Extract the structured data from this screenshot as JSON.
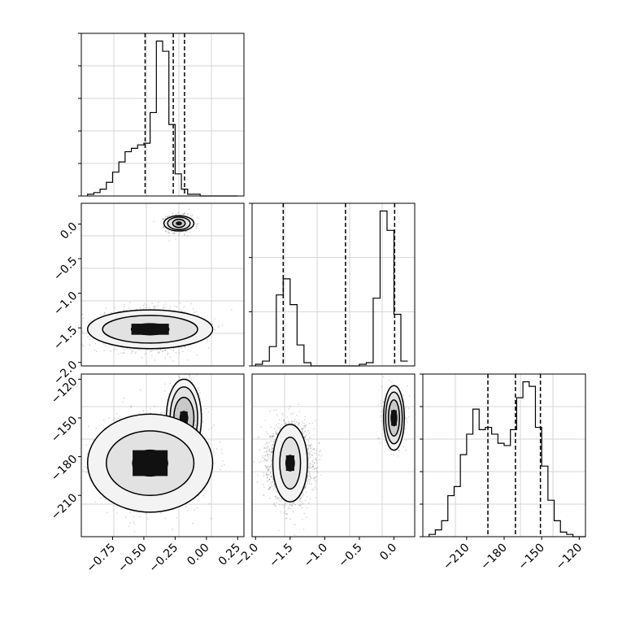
{
  "figure": {
    "type": "corner-plot"
  },
  "chart_data": [
    {
      "id": "hist-p1",
      "type": "bar",
      "panel": "histogram",
      "xlim": [
        -1.0,
        0.3
      ],
      "bin_edges": [
        -0.95,
        -0.9,
        -0.85,
        -0.8,
        -0.75,
        -0.7,
        -0.65,
        -0.6,
        -0.55,
        -0.5,
        -0.45,
        -0.4,
        -0.35,
        -0.3,
        -0.25,
        -0.2,
        -0.15,
        -0.1,
        -0.05,
        0.0,
        0.05,
        0.1,
        0.15,
        0.2,
        0.25
      ],
      "counts": [
        0.01,
        0.02,
        0.04,
        0.08,
        0.14,
        0.2,
        0.26,
        0.28,
        0.3,
        0.31,
        0.49,
        0.91,
        0.85,
        0.42,
        0.13,
        0.04,
        0.01,
        0.01,
        0,
        0,
        0,
        0,
        0,
        0
      ],
      "quantile_lines": [
        -0.49,
        -0.265,
        -0.175
      ],
      "ytick_count": 5,
      "grid": true
    },
    {
      "id": "hist-p2",
      "type": "bar",
      "panel": "histogram",
      "xlim": [
        -2.05,
        0.3
      ],
      "bin_edges": [
        -2.0,
        -1.9,
        -1.8,
        -1.7,
        -1.6,
        -1.5,
        -1.4,
        -1.3,
        -1.2,
        -1.1,
        -1.0,
        -0.9,
        -0.8,
        -0.7,
        -0.6,
        -0.5,
        -0.4,
        -0.3,
        -0.2,
        -0.1,
        0.0,
        0.1,
        0.2
      ],
      "counts": [
        0.01,
        0.03,
        0.12,
        0.44,
        0.54,
        0.38,
        0.13,
        0.02,
        0,
        0,
        0,
        0,
        0,
        0,
        0,
        0.01,
        0.02,
        0.42,
        0.96,
        0.84,
        0.32,
        0.03
      ],
      "quantile_lines": [
        -1.6,
        -0.7,
        0.01
      ],
      "ytick_count": 3,
      "grid": true
    },
    {
      "id": "hist-p3",
      "type": "bar",
      "panel": "histogram",
      "xlim": [
        -245,
        -115
      ],
      "bin_edges": [
        -240,
        -235,
        -230,
        -225,
        -220,
        -215,
        -210,
        -205,
        -200,
        -195,
        -190,
        -185,
        -180,
        -175,
        -170,
        -165,
        -160,
        -155,
        -150,
        -145,
        -140,
        -135,
        -130,
        -125,
        -120,
        -115
      ],
      "counts": [
        0.01,
        0.03,
        0.07,
        0.18,
        0.22,
        0.36,
        0.45,
        0.56,
        0.47,
        0.48,
        0.45,
        0.41,
        0.4,
        0.47,
        0.61,
        0.68,
        0.66,
        0.48,
        0.31,
        0.16,
        0.07,
        0.02,
        0.01,
        0,
        0
      ],
      "quantile_lines": [
        -193,
        -171,
        -151
      ],
      "ytick_count": 5,
      "grid": true
    },
    {
      "id": "scatter-p1-p2",
      "type": "scatter",
      "panel": "density-contour",
      "xlim": [
        -1.0,
        0.3
      ],
      "ylim": [
        -2.05,
        0.3
      ],
      "clusters": [
        {
          "center": [
            -0.22,
            0.01
          ],
          "spread": [
            0.05,
            0.06
          ],
          "points": 900,
          "contour_radii": [
            [
              0.02,
              0.02
            ],
            [
              0.05,
              0.06
            ],
            [
              0.09,
              0.09
            ],
            [
              0.12,
              0.11
            ]
          ]
        },
        {
          "center": [
            -0.45,
            -1.52
          ],
          "spread": [
            0.18,
            0.13
          ],
          "points": 2800,
          "contour_radii": [
            [
              0.15,
              0.08
            ],
            [
              0.38,
              0.2
            ],
            [
              0.5,
              0.28
            ]
          ]
        }
      ],
      "yticks": [
        0.0,
        -0.5,
        -1.0,
        -1.5,
        -2.0
      ],
      "ytick_labels": [
        "0.0",
        "−0.5",
        "−1.0",
        "−1.5",
        "−2.0"
      ],
      "ylabel": "",
      "grid": true
    },
    {
      "id": "scatter-p1-p3",
      "type": "scatter",
      "panel": "density-contour",
      "xlim": [
        -1.0,
        0.3
      ],
      "ylim": [
        -242,
        -116
      ],
      "clusters": [
        {
          "center": [
            -0.18,
            -150
          ],
          "spread": [
            0.06,
            13
          ],
          "points": 1100,
          "contour_radii": [
            [
              0.03,
              5
            ],
            [
              0.08,
              16
            ],
            [
              0.11,
              24
            ],
            [
              0.14,
              30
            ]
          ]
        },
        {
          "center": [
            -0.45,
            -185
          ],
          "spread": [
            0.18,
            15
          ],
          "points": 2600,
          "contour_radii": [
            [
              0.14,
              10
            ],
            [
              0.35,
              25
            ],
            [
              0.5,
              38
            ]
          ]
        }
      ],
      "yticks": [
        -120,
        -150,
        -180,
        -210
      ],
      "ytick_labels": [
        "−120",
        "−150",
        "−180",
        "−210"
      ],
      "xticks": [
        -0.75,
        -0.5,
        -0.25,
        0.0,
        0.25
      ],
      "xtick_labels": [
        "−0.75",
        "−0.50",
        "−0.25",
        "0.00",
        "0.25"
      ],
      "xlabel": "",
      "ylabel": "",
      "grid": true
    },
    {
      "id": "scatter-p2-p3",
      "type": "scatter",
      "panel": "density-contour",
      "xlim": [
        -2.05,
        0.3
      ],
      "ylim": [
        -242,
        -116
      ],
      "clusters": [
        {
          "center": [
            0.0,
            -150
          ],
          "spread": [
            0.07,
            10
          ],
          "points": 1100,
          "contour_radii": [
            [
              0.04,
              6
            ],
            [
              0.08,
              14
            ],
            [
              0.12,
              20
            ],
            [
              0.15,
              25
            ]
          ]
        },
        {
          "center": [
            -1.5,
            -185
          ],
          "spread": [
            0.15,
            14
          ],
          "points": 2600,
          "contour_radii": [
            [
              0.06,
              6
            ],
            [
              0.15,
              20
            ],
            [
              0.25,
              30
            ]
          ]
        }
      ],
      "xticks": [
        -2.0,
        -1.5,
        -1.0,
        -0.5,
        0.0
      ],
      "xtick_labels": [
        "−2.0",
        "−1.5",
        "−1.0",
        "−0.5",
        "0.0"
      ],
      "xlabel": "",
      "grid": true
    },
    {
      "id": "hist-p3-axis",
      "type": "bar",
      "panel": "axis",
      "xticks": [
        -210,
        -180,
        -150,
        -120
      ],
      "xtick_labels": [
        "−210",
        "−180",
        "−150",
        "−120"
      ],
      "xlabel": ""
    }
  ]
}
